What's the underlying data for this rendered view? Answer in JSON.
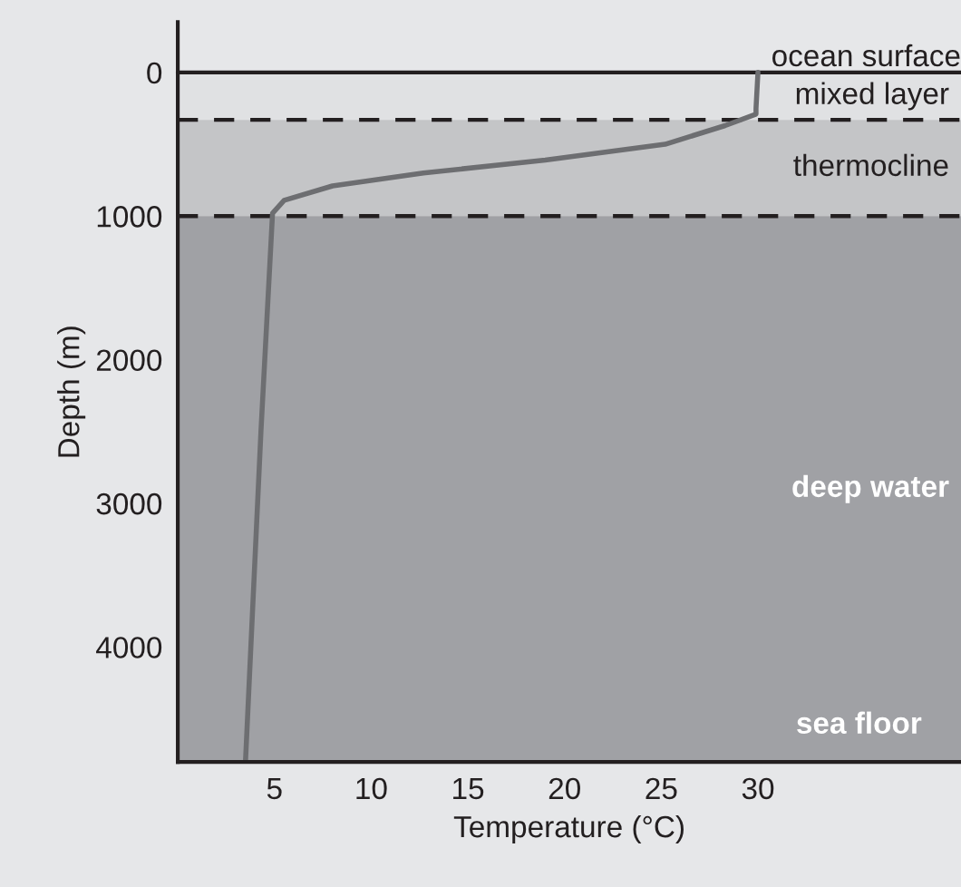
{
  "chart_data": {
    "type": "line",
    "xlabel": "Temperature (°C)",
    "ylabel": "Depth (m)",
    "x": [
      30,
      29.9,
      29.9,
      28.3,
      25.2,
      19.0,
      12.7,
      8.0,
      5.5,
      4.9,
      4.3,
      3.5
    ],
    "series": [
      {
        "color": "#6d6e71",
        "values": [
          0,
          250,
          290,
          370,
          500,
          610,
          700,
          790,
          890,
          980,
          2500,
          4800
        ]
      }
    ],
    "xlim": [
      0,
      40.5
    ],
    "ylim": [
      4800,
      -350
    ],
    "xticks": [
      5,
      10,
      15,
      20,
      25,
      30
    ],
    "yticks": [
      0,
      1000,
      2000,
      3000,
      4000
    ],
    "ref_lines": [
      {
        "axis": "y",
        "value": 0,
        "label": "ocean surface",
        "line_style": "solid",
        "color": "#231f20"
      },
      {
        "axis": "y",
        "value": 330,
        "label": null,
        "line_style": "dashed",
        "color": "#231f20"
      },
      {
        "axis": "y",
        "value": 1000,
        "label": null,
        "line_style": "dashed",
        "color": "#231f20"
      }
    ],
    "bands": [
      {
        "axis": "y",
        "from": 0,
        "to": 330,
        "label": "mixed layer",
        "color": "#e0e1e3"
      },
      {
        "axis": "y",
        "from": 330,
        "to": 1000,
        "label": "thermocline",
        "color": "#c4c5c7"
      },
      {
        "axis": "y",
        "from": 1000,
        "to": 4800,
        "label": "deep water",
        "color": "#a0a1a5"
      }
    ],
    "annotations": [
      "sea floor"
    ],
    "grid": false,
    "legend": false,
    "marker": "none",
    "line_style": "solid"
  }
}
